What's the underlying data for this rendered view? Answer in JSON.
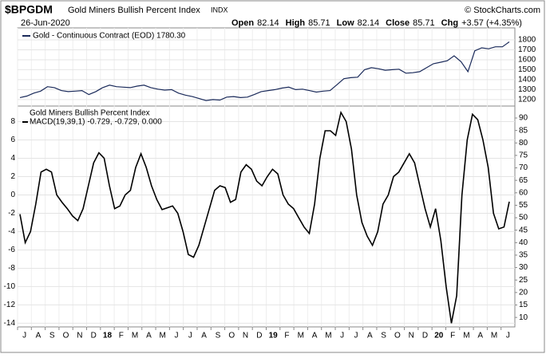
{
  "header": {
    "symbol": "$BPGDM",
    "name": "Gold Miners Bullish Percent Index",
    "exchange": "INDX",
    "copyright": "© StockCharts.com",
    "date": "26-Jun-2020",
    "stats": [
      {
        "label": "Open",
        "value": 82.14
      },
      {
        "label": "High",
        "value": 85.71
      },
      {
        "label": "Low",
        "value": 82.14
      },
      {
        "label": "Close",
        "value": 85.71
      },
      {
        "label": "Chg",
        "value": "+3.57 (+4.35%)"
      }
    ]
  },
  "chart_data": [
    {
      "type": "line",
      "ylim": [
        1135,
        1920
      ],
      "yticks": [
        1200,
        1300,
        1400,
        1500,
        1600,
        1700,
        1800
      ],
      "grid": true,
      "series": [
        {
          "name": "Gold - Continuous Contract (EOD) 1780.30",
          "color": "#1a2a5a",
          "values": [
            1220,
            1235,
            1265,
            1285,
            1330,
            1320,
            1290,
            1280,
            1285,
            1290,
            1250,
            1280,
            1320,
            1345,
            1330,
            1325,
            1320,
            1335,
            1345,
            1320,
            1305,
            1295,
            1300,
            1265,
            1245,
            1230,
            1210,
            1190,
            1200,
            1195,
            1225,
            1230,
            1220,
            1225,
            1250,
            1280,
            1290,
            1300,
            1315,
            1325,
            1300,
            1305,
            1290,
            1275,
            1285,
            1290,
            1350,
            1410,
            1420,
            1425,
            1500,
            1520,
            1510,
            1495,
            1500,
            1505,
            1465,
            1470,
            1480,
            1520,
            1560,
            1575,
            1590,
            1640,
            1580,
            1480,
            1690,
            1720,
            1710,
            1730,
            1730,
            1780
          ]
        }
      ]
    },
    {
      "type": "line",
      "title": "Gold Miners Bullish Percent Index",
      "legend": [
        "MACD(19,39,1)",
        "-0.729,",
        "-0.729,",
        "0.000"
      ],
      "legend_colors": [
        "#000000",
        "#000000",
        "#cc0000",
        "#008000"
      ],
      "ylim": [
        -14.4,
        9.7
      ],
      "yticks": [
        8,
        6,
        4,
        2,
        0,
        -2,
        -4,
        -6,
        -8,
        -10,
        -12,
        -14
      ],
      "y2lim": [
        6.2,
        94.8
      ],
      "y2ticks": [
        10,
        15,
        20,
        25,
        30,
        35,
        40,
        45,
        50,
        55,
        60,
        65,
        70,
        75,
        80,
        85,
        90
      ],
      "grid": true,
      "month_labels": [
        "J",
        "A",
        "S",
        "O",
        "N",
        "D",
        "18",
        "F",
        "M",
        "A",
        "M",
        "J",
        "J",
        "A",
        "S",
        "O",
        "N",
        "D",
        "19",
        "F",
        "M",
        "A",
        "M",
        "J",
        "J",
        "A",
        "S",
        "O",
        "N",
        "D",
        "20",
        "F",
        "M",
        "A",
        "M",
        "J"
      ],
      "series": [
        {
          "name": "MACD(19,39,1)",
          "color": "#000000",
          "values": [
            -2.1,
            -5.2,
            -4,
            -1,
            2.5,
            2.8,
            2.5,
            0,
            -0.8,
            -1.5,
            -2.3,
            -2.8,
            -1.5,
            1,
            3.5,
            4.6,
            4,
            1,
            -1.5,
            -1.2,
            0,
            0.5,
            3,
            4.5,
            3,
            1,
            -0.5,
            -1.6,
            -1.4,
            -1.2,
            -2,
            -4,
            -6.5,
            -6.8,
            -5.5,
            -3.5,
            -1.5,
            0.5,
            1,
            0.8,
            -0.8,
            -0.5,
            2.5,
            3.3,
            2.8,
            1.5,
            1,
            2,
            2.8,
            2.3,
            0,
            -1,
            -1.5,
            -2.5,
            -3.5,
            -4.2,
            -1,
            4,
            7,
            7,
            6.5,
            9,
            8,
            5,
            0,
            -3,
            -4.5,
            -5.5,
            -4,
            -1,
            0,
            2,
            2.5,
            3.5,
            4.5,
            3.5,
            1,
            -1.5,
            -3.5,
            -1.5,
            -5,
            -10,
            -14,
            -11,
            0,
            6,
            8.8,
            8.2,
            6,
            3,
            -2,
            -3.7,
            -3.5,
            -0.73
          ]
        }
      ]
    }
  ]
}
